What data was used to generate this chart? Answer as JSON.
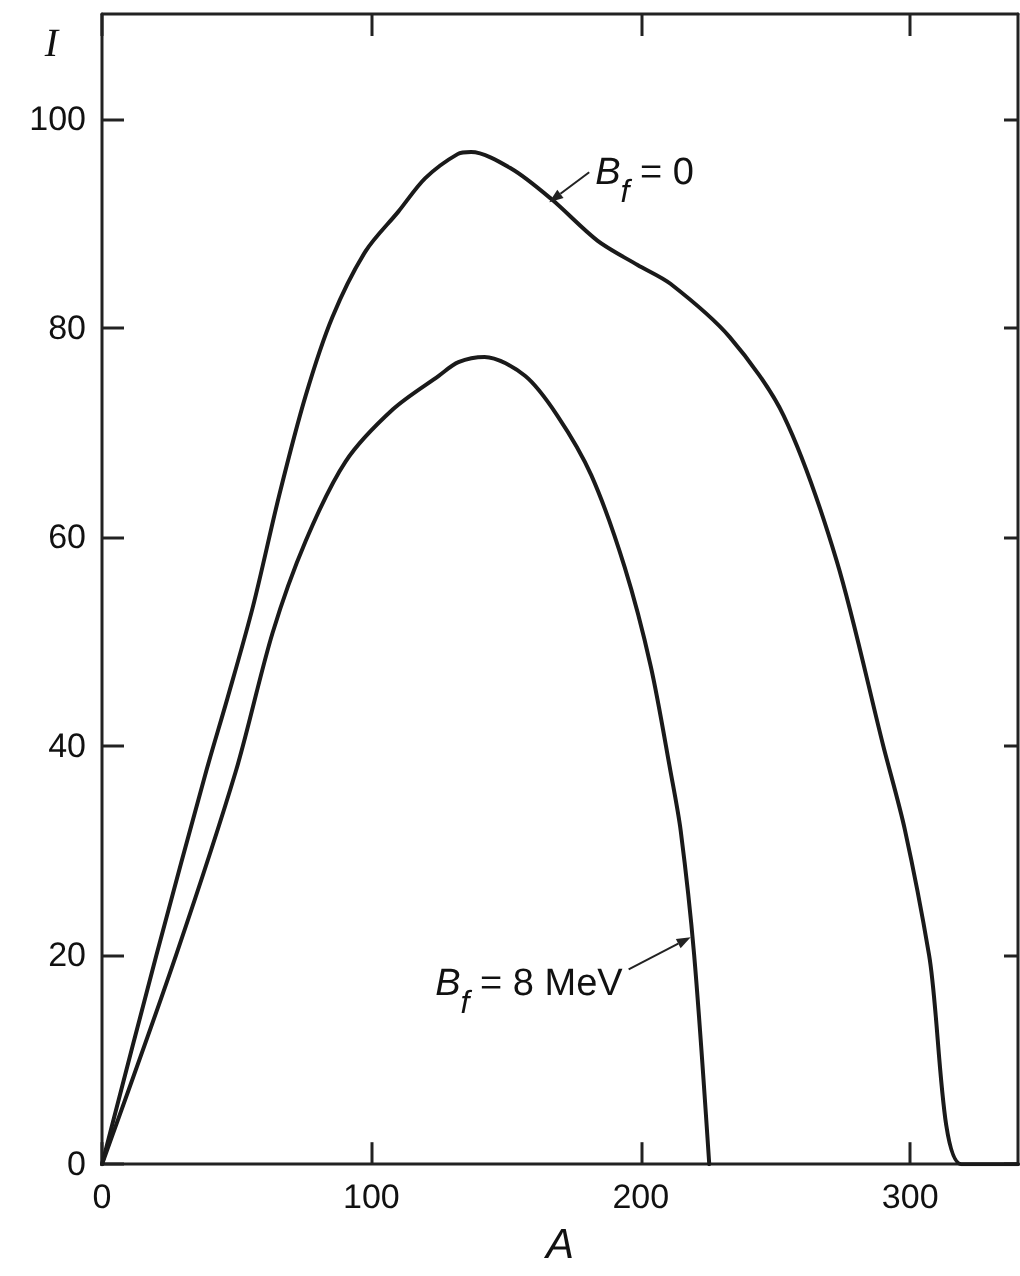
{
  "chart_data": {
    "type": "line",
    "xlabel": "A",
    "ylabel": "I",
    "xlim": [
      0,
      340
    ],
    "ylim": [
      0,
      110
    ],
    "xticks": [
      0,
      100,
      200,
      300
    ],
    "yticks": [
      0,
      20,
      40,
      60,
      80,
      100
    ],
    "grid": false,
    "marker": "none",
    "line_style": "solid",
    "series": [
      {
        "color": "#1a1a1a",
        "x": [
          0,
          20.2,
          38.7,
          46.5,
          56,
          65.8,
          75.6,
          85.5,
          97.8,
          110,
          120,
          132,
          137,
          152,
          166.8,
          184,
          198.8,
          211,
          233,
          253,
          272.7,
          290,
          298,
          307,
          319,
          340
        ],
        "values": [
          0,
          20,
          37.6,
          44.5,
          53.3,
          64,
          73.5,
          81,
          87.3,
          91.1,
          94.3,
          96.6,
          96.8,
          95.2,
          92.3,
          88.3,
          86,
          84.2,
          79.1,
          71.6,
          57.7,
          40,
          32,
          20,
          0,
          0
        ]
      },
      {
        "color": "#1a1a1a",
        "x": [
          0,
          27.5,
          49.7,
          63.3,
          75.6,
          90.4,
          108,
          125,
          132.3,
          142,
          157,
          169,
          181.6,
          194,
          203.7,
          211,
          214.8,
          219.8,
          225.4
        ],
        "values": [
          0,
          20,
          37.6,
          50.8,
          59.6,
          67.2,
          72.2,
          75.4,
          76.7,
          77.2,
          75.4,
          71.6,
          65.9,
          57.1,
          47.6,
          37.6,
          31.9,
          20,
          0
        ]
      }
    ],
    "annotations": [
      {
        "text": "B$_{f}$ = 0",
        "x": 166,
        "y": 92
      },
      {
        "text": "B$_{f}$ = 8 MeV",
        "x": 218.5,
        "y": 21.7
      }
    ]
  }
}
